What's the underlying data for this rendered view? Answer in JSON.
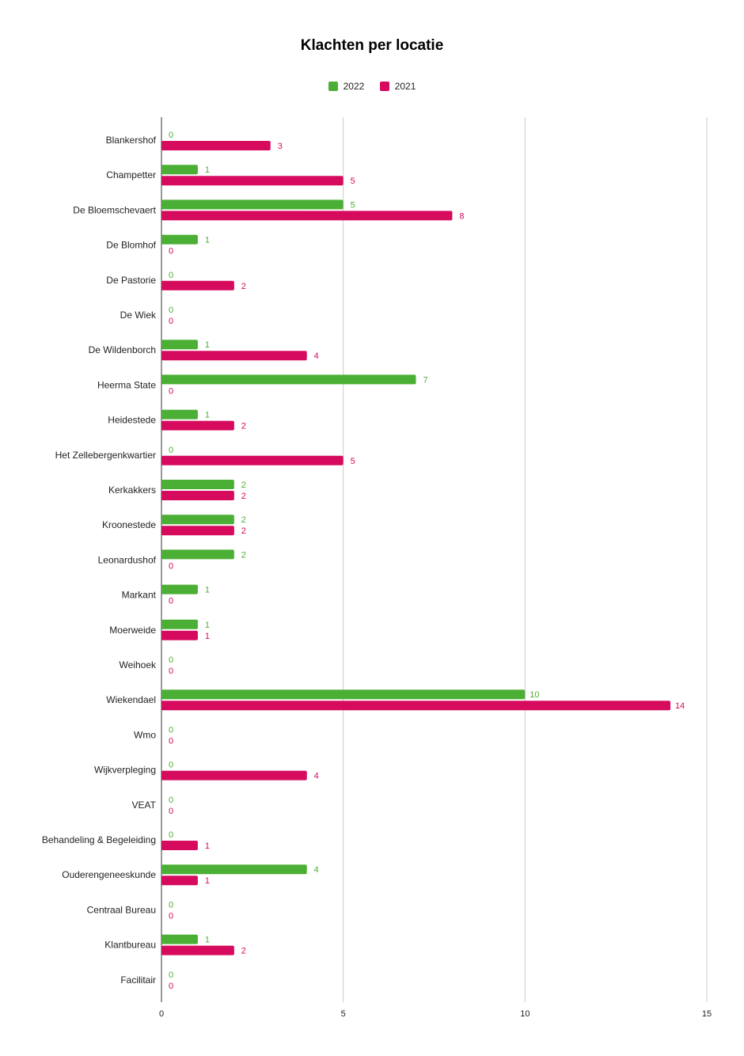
{
  "chart_data": {
    "type": "bar",
    "orientation": "horizontal",
    "title": "Klachten per locatie",
    "categories": [
      "Blankershof",
      "Champetter",
      "De Bloemschevaert",
      "De Blomhof",
      "De Pastorie",
      "De Wiek",
      "De Wildenborch",
      "Heerma State",
      "Heidestede",
      "Het Zellebergenkwartier",
      "Kerkakkers",
      "Kroonestede",
      "Leonardushof",
      "Markant",
      "Moerweide",
      "Weihoek",
      "Wiekendael",
      "Wmo",
      "Wijkverpleging",
      "VEAT",
      "Behandeling & Begeleiding",
      "Ouderengeneeskunde",
      "Centraal Bureau",
      "Klantbureau",
      "Facilitair"
    ],
    "series": [
      {
        "name": "2022",
        "color": "#4caf35",
        "values": [
          0,
          1,
          5,
          1,
          0,
          0,
          1,
          7,
          1,
          0,
          2,
          2,
          2,
          1,
          1,
          0,
          10,
          0,
          0,
          0,
          0,
          4,
          0,
          1,
          0
        ]
      },
      {
        "name": "2021",
        "color": "#d60b5e",
        "values": [
          3,
          5,
          8,
          0,
          2,
          0,
          4,
          0,
          2,
          5,
          2,
          2,
          0,
          0,
          1,
          0,
          14,
          0,
          4,
          0,
          1,
          1,
          0,
          2,
          0
        ]
      }
    ],
    "xlim": [
      0,
      15
    ],
    "xticks": [
      0,
      5,
      10,
      15
    ],
    "grid": true,
    "legend_position": "top-center",
    "data_labels": true
  }
}
